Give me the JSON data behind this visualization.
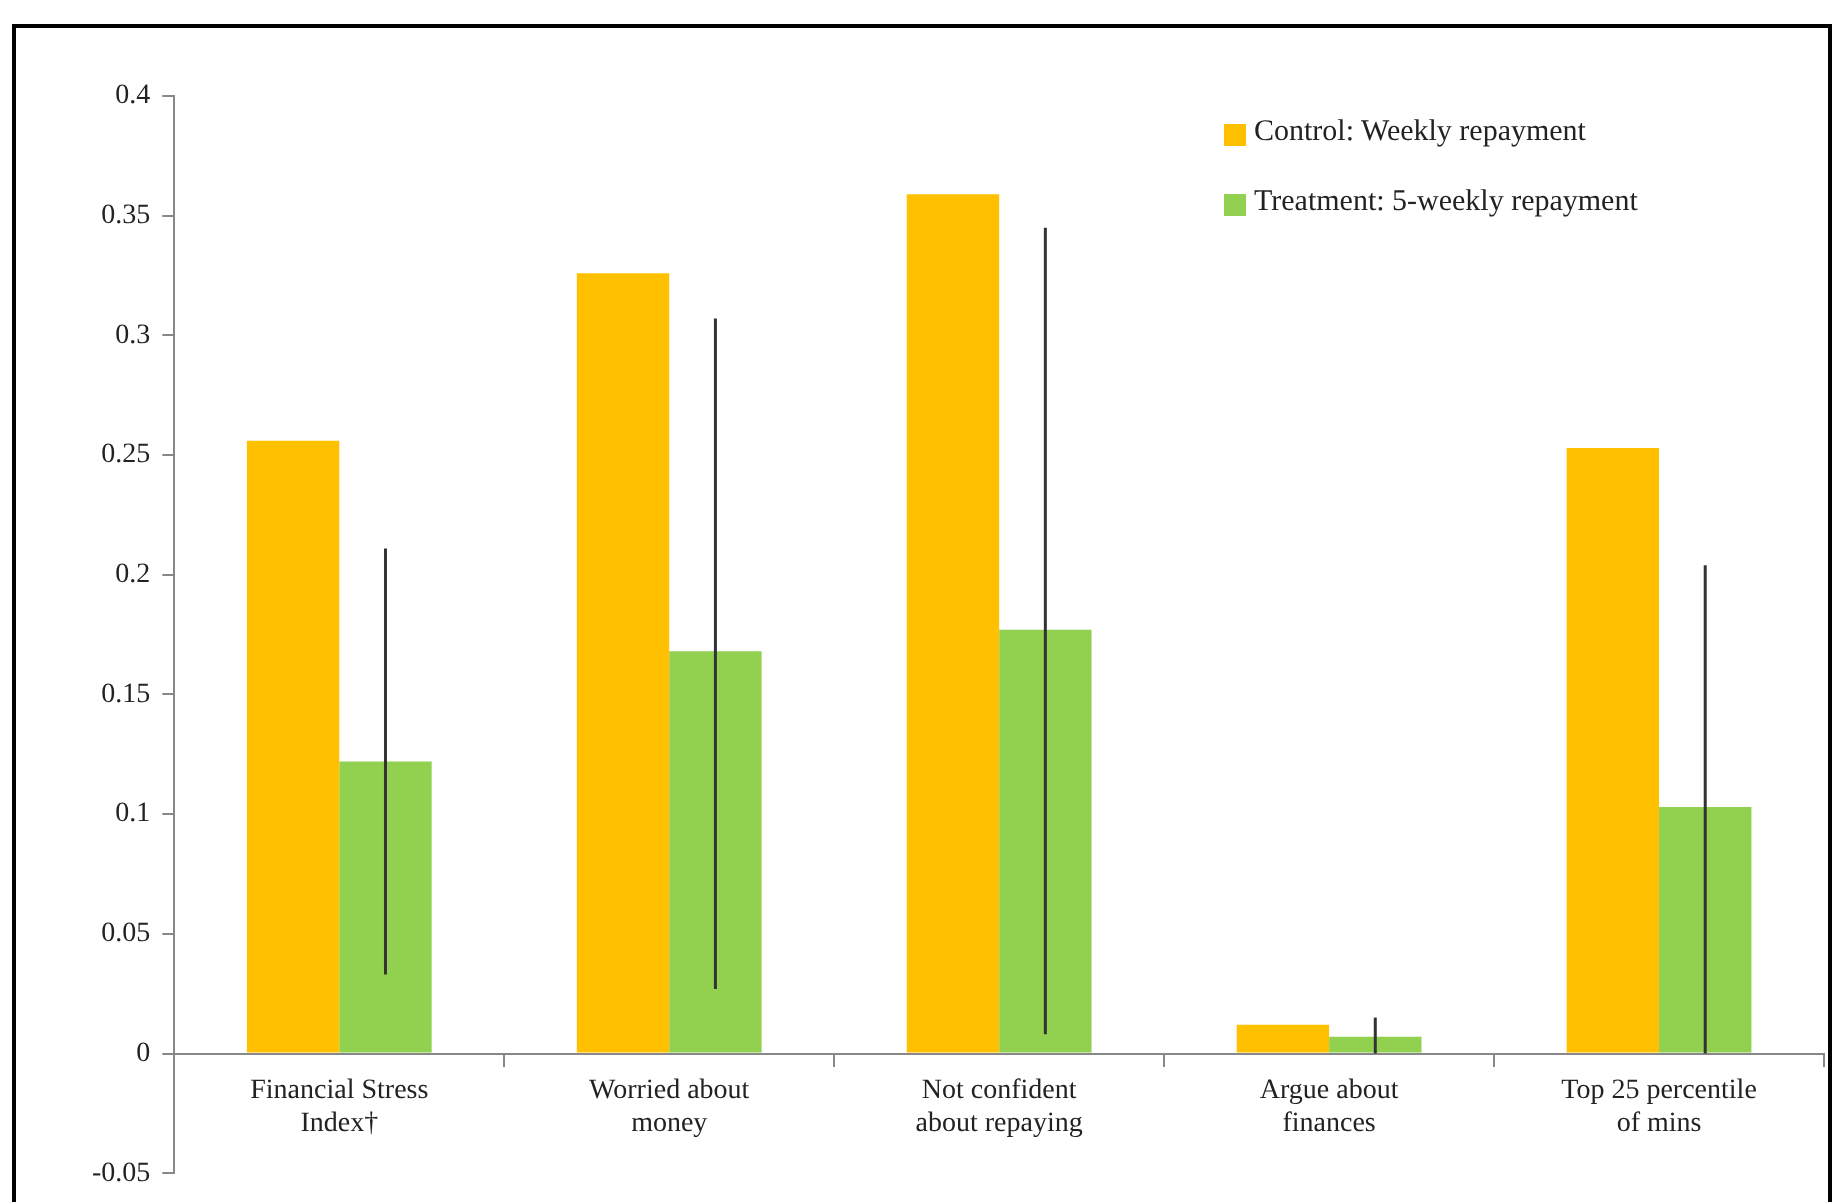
{
  "chart_data": {
    "type": "bar",
    "categories": [
      "Financial Stress Index†",
      "Worried about money",
      "Not confident about repaying",
      "Argue about finances",
      "Top 25 percentile of mins"
    ],
    "series": [
      {
        "name": "Control: Weekly repayment",
        "color": "#ffc000",
        "values": [
          0.256,
          0.326,
          0.359,
          0.012,
          0.253
        ]
      },
      {
        "name": "Treatment: 5-weekly repayment",
        "color": "#92d050",
        "values": [
          0.122,
          0.168,
          0.177,
          0.007,
          0.103
        ],
        "errors": [
          [
            0.033,
            0.211
          ],
          [
            0.027,
            0.307
          ],
          [
            0.008,
            0.345
          ],
          [
            0,
            0.015
          ],
          [
            0,
            0.204
          ]
        ]
      }
    ],
    "ylim": [
      -0.05,
      0.4
    ],
    "yticks": [
      -0.05,
      0,
      0.05,
      0.1,
      0.15,
      0.2,
      0.25,
      0.3,
      0.35,
      0.4
    ],
    "grid": false,
    "legend": "top right"
  }
}
